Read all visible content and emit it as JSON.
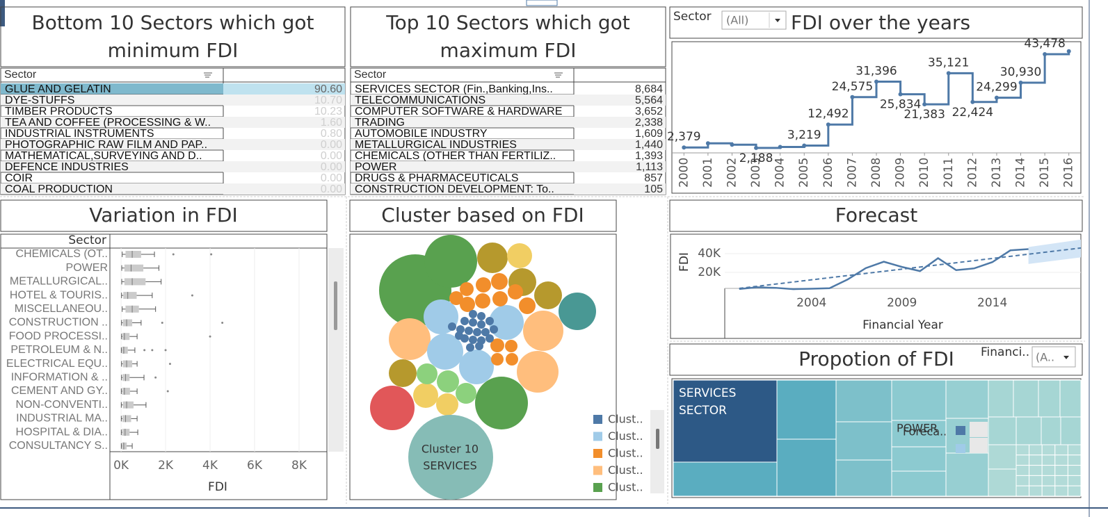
{
  "bottom_table": {
    "title": "Bottom 10 Sectors which got minimum FDI",
    "column": "Sector",
    "rows": [
      [
        "GLUE AND GELATIN",
        "90.60"
      ],
      [
        "DYE-STUFFS",
        "10.70"
      ],
      [
        "TIMBER PRODUCTS",
        "10.23"
      ],
      [
        "TEA AND COFFEE (PROCESSING & W..",
        "1.60"
      ],
      [
        "INDUSTRIAL INSTRUMENTS",
        "0.80"
      ],
      [
        "PHOTOGRAPHIC RAW FILM AND PAP..",
        "0.00"
      ],
      [
        "MATHEMATICAL,SURVEYING AND D..",
        "0.00"
      ],
      [
        "DEFENCE INDUSTRIES",
        "0.00"
      ],
      [
        "COIR",
        "0.00"
      ],
      [
        "COAL PRODUCTION",
        "0.00"
      ]
    ]
  },
  "top_table": {
    "title": "Top 10 Sectors which got maximum FDI",
    "column": "Sector",
    "rows": [
      [
        "SERVICES SECTOR (Fin.,Banking,Ins..",
        "8,684"
      ],
      [
        "TELECOMMUNICATIONS",
        "5,564"
      ],
      [
        "COMPUTER SOFTWARE & HARDWARE",
        "3,652"
      ],
      [
        "TRADING",
        "2,338"
      ],
      [
        "AUTOMOBILE INDUSTRY",
        "1,609"
      ],
      [
        "METALLURGICAL INDUSTRIES",
        "1,440"
      ],
      [
        "CHEMICALS (OTHER THAN FERTILIZ..",
        "1,393"
      ],
      [
        "POWER",
        "1,113"
      ],
      [
        "DRUGS & PHARMACEUTICALS",
        "857"
      ],
      [
        "CONSTRUCTION DEVELOPMENT: To..",
        "105"
      ]
    ]
  },
  "chart_data": [
    {
      "type": "line",
      "title": "FDI over the years",
      "filter_label": "Sector",
      "filter_value": "(All)",
      "step": true,
      "color": "#4e79a7",
      "x": [
        2000,
        2001,
        2002,
        2003,
        2004,
        2005,
        2006,
        2007,
        2008,
        2009,
        2010,
        2011,
        2012,
        2013,
        2014,
        2015,
        2016
      ],
      "values": [
        2379,
        4200,
        3600,
        2188,
        2600,
        3219,
        12492,
        24575,
        31396,
        25834,
        21383,
        35121,
        22424,
        24299,
        30930,
        43478,
        44800
      ],
      "value_labels": [
        "2,379",
        null,
        null,
        "2,188",
        null,
        "3,219",
        "12,492",
        "24,575",
        "31,396",
        "25,834",
        "21,383",
        "35,121",
        "22,424",
        "24,299",
        "30,930",
        "43,478",
        null
      ],
      "xlim": [
        1999.5,
        2016.5
      ],
      "ylim": [
        0,
        49000
      ],
      "xticks": [
        2000,
        2001,
        2002,
        2003,
        2004,
        2005,
        2006,
        2007,
        2008,
        2009,
        2010,
        2011,
        2012,
        2013,
        2014,
        2015,
        2016
      ]
    },
    {
      "type": "box",
      "title": "Variation in FDI",
      "column": "Sector",
      "xlabel": "FDI",
      "color": "#b5b5b5",
      "grid": true,
      "categories": [
        "CHEMICALS (OT..",
        "POWER",
        "METALLURGICAL..",
        "HOTEL & TOURIS..",
        "MISCELLANEOU..",
        "CONSTRUCTION ..",
        "FOOD PROCESSI..",
        "PETROLEUM & N..",
        "ELECTRICAL EQU..",
        "INFORMATION & ..",
        "CEMENT AND GY..",
        "NON-CONVENTI..",
        "INDUSTRIAL MA..",
        "HOSPITAL & DIA..",
        "CONSULTANCY S.."
      ],
      "boxes": [
        {
          "min": 50,
          "q1": 200,
          "median": 500,
          "q3": 900,
          "max": 1500,
          "outliers": [
            2350,
            4050
          ]
        },
        {
          "min": 30,
          "q1": 150,
          "median": 450,
          "q3": 1000,
          "max": 1700,
          "outliers": []
        },
        {
          "min": 30,
          "q1": 150,
          "median": 500,
          "q3": 1100,
          "max": 1800,
          "outliers": []
        },
        {
          "min": 20,
          "q1": 100,
          "median": 300,
          "q3": 700,
          "max": 1400,
          "outliers": [
            3200
          ]
        },
        {
          "min": 50,
          "q1": 200,
          "median": 500,
          "q3": 800,
          "max": 1550,
          "outliers": []
        },
        {
          "min": 20,
          "q1": 80,
          "median": 250,
          "q3": 500,
          "max": 900,
          "outliers": [
            1850,
            4550
          ]
        },
        {
          "min": 20,
          "q1": 60,
          "median": 150,
          "q3": 380,
          "max": 720,
          "outliers": [
            4000
          ]
        },
        {
          "min": 10,
          "q1": 40,
          "median": 120,
          "q3": 300,
          "max": 620,
          "outliers": [
            1050,
            1400,
            2000
          ]
        },
        {
          "min": 20,
          "q1": 80,
          "median": 250,
          "q3": 500,
          "max": 720,
          "outliers": [
            2200
          ]
        },
        {
          "min": 20,
          "q1": 70,
          "median": 200,
          "q3": 380,
          "max": 1030,
          "outliers": [
            1550
          ]
        },
        {
          "min": 10,
          "q1": 50,
          "median": 150,
          "q3": 400,
          "max": 720,
          "outliers": [
            2100
          ]
        },
        {
          "min": 10,
          "q1": 80,
          "median": 250,
          "q3": 560,
          "max": 1120,
          "outliers": []
        },
        {
          "min": 10,
          "q1": 60,
          "median": 200,
          "q3": 450,
          "max": 720,
          "outliers": []
        },
        {
          "min": 10,
          "q1": 50,
          "median": 180,
          "q3": 380,
          "max": 750,
          "outliers": []
        },
        {
          "min": 10,
          "q1": 40,
          "median": 120,
          "q3": 250,
          "max": 500,
          "outliers": []
        }
      ],
      "xlim": [
        -440,
        9250
      ],
      "xticks": [
        {
          "value": 0,
          "label": "0K"
        },
        {
          "value": 2000,
          "label": "2K"
        },
        {
          "value": 4000,
          "label": "4K"
        },
        {
          "value": 6000,
          "label": "6K"
        },
        {
          "value": 8000,
          "label": "8K"
        }
      ]
    },
    {
      "type": "forecast",
      "title": "Forecast",
      "ylabel": "FDI",
      "xlabel": "Financial Year",
      "color": "#4e79a7",
      "grid": true,
      "xlim": [
        1999.2,
        2018.9
      ],
      "ylim": [
        3000,
        60700
      ],
      "xticks": [
        2004,
        2009,
        2014
      ],
      "yticks": [
        {
          "value": 20000,
          "label": "20K"
        },
        {
          "value": 40000,
          "label": "40K"
        }
      ],
      "trend": {
        "x": [
          2000,
          2018.9
        ],
        "values": [
          3000,
          46000
        ]
      },
      "band": {
        "x": [
          2016,
          2018.9
        ],
        "low": [
          29000,
          36000
        ],
        "high": [
          47000,
          55000
        ],
        "color": "#d3e5f6"
      }
    }
  ],
  "cluster": {
    "title": "Cluster based on FDI",
    "label": "Cluster 10",
    "sublabel": "SERVICES",
    "legend": [
      {
        "label": "Clust..",
        "color": "#4e79a7"
      },
      {
        "label": "Clust..",
        "color": "#a0cbe8"
      },
      {
        "label": "Clust..",
        "color": "#f28e2b"
      },
      {
        "label": "Clust..",
        "color": "#ffbe7d"
      },
      {
        "label": "Clust..",
        "color": "#59a14f"
      }
    ]
  },
  "proportion": {
    "title": "Propotion of FDI",
    "filter_label": "Financi..",
    "filter_value": "(A..",
    "labels": [
      "SERVICES SECTOR",
      "POWER"
    ],
    "legend_label": "Foreca.."
  }
}
